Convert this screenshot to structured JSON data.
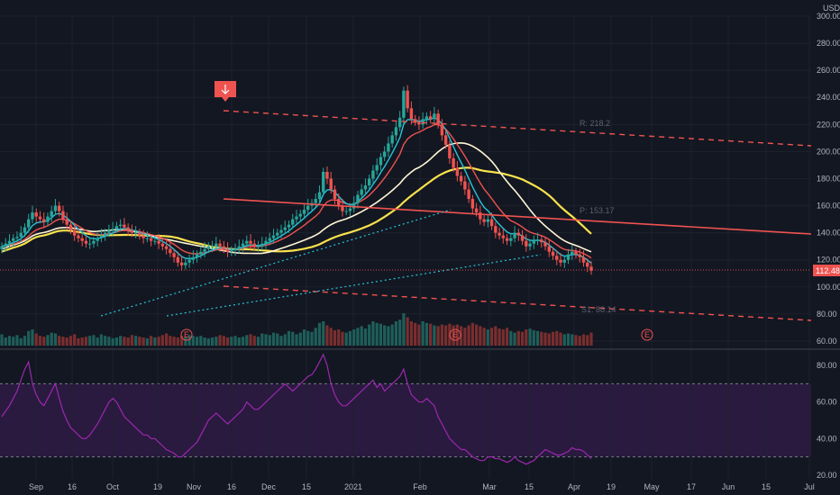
{
  "chart_data": {
    "type": "candlestick",
    "currency_label": "USD",
    "price_axis": {
      "ticks": [
        "300.00",
        "280.00",
        "260.00",
        "240.00",
        "220.00",
        "200.00",
        "180.00",
        "160.00",
        "140.00",
        "120.00",
        "100.00",
        "80.00",
        "60.00"
      ],
      "range": [
        58,
        300
      ]
    },
    "rsi_axis": {
      "ticks": [
        "80.00",
        "60.00",
        "40.00",
        "20.00"
      ],
      "range": [
        18,
        84
      ],
      "bands": [
        70,
        30
      ]
    },
    "x_axis": {
      "labels": [
        "Sep",
        "16",
        "Oct",
        "19",
        "Nov",
        "16",
        "Dec",
        "15",
        "2021",
        "Feb",
        "Mar",
        "15",
        "Apr",
        "19",
        "May",
        "17",
        "Jun",
        "15",
        "Jul"
      ]
    },
    "last_price": "112.48",
    "earnings_marker": "E",
    "annotations": {
      "resistance": "R: 218.2",
      "pivot": "P: 153.17",
      "support": "S1: 88.14"
    },
    "colors": {
      "up": "#26a69a",
      "down": "#ef5350",
      "ema_fast": "#26c6da",
      "ema_mid": "#ef5350",
      "sma_white": "#fff6d5",
      "sma_yellow": "#f9e24c",
      "rsi": "#9c27b0",
      "rsi_band_fill": "#2a1a3f",
      "grid": "#1e222d"
    },
    "series": {
      "close": [
        130,
        132,
        134,
        136,
        137,
        140,
        144,
        150,
        155,
        152,
        150,
        148,
        152,
        156,
        160,
        156,
        150,
        146,
        142,
        138,
        136,
        134,
        132,
        132,
        134,
        136,
        138,
        140,
        142,
        143,
        145,
        146,
        144,
        142,
        140,
        140,
        138,
        136,
        136,
        134,
        134,
        132,
        130,
        128,
        125,
        122,
        118,
        116,
        118,
        120,
        122,
        124,
        126,
        128,
        130,
        130,
        132,
        130,
        128,
        126,
        127,
        128,
        130,
        132,
        134,
        132,
        130,
        130,
        132,
        134,
        136,
        138,
        140,
        142,
        144,
        146,
        150,
        152,
        154,
        157,
        160,
        162,
        165,
        170,
        185,
        180,
        172,
        165,
        160,
        156,
        156,
        158,
        162,
        168,
        172,
        175,
        180,
        186,
        190,
        196,
        200,
        206,
        212,
        218,
        225,
        245,
        232,
        224,
        222,
        220,
        224,
        226,
        224,
        228,
        220,
        212,
        205,
        195,
        188,
        182,
        178,
        172,
        165,
        158,
        155,
        150,
        148,
        150,
        145,
        140,
        138,
        136,
        134,
        136,
        140,
        138,
        134,
        130,
        132,
        134,
        135,
        133,
        130,
        126,
        123,
        120,
        118,
        120,
        124,
        126,
        124,
        122,
        118,
        115,
        112
      ],
      "volume": [
        14,
        10,
        12,
        11,
        13,
        9,
        12,
        18,
        20,
        15,
        12,
        11,
        13,
        16,
        15,
        12,
        11,
        10,
        12,
        14,
        9,
        10,
        11,
        12,
        13,
        10,
        14,
        12,
        11,
        9,
        10,
        12,
        11,
        10,
        13,
        12,
        11,
        10,
        9,
        12,
        10,
        11,
        13,
        15,
        12,
        11,
        10,
        12,
        11,
        13,
        12,
        11,
        12,
        10,
        9,
        10,
        11,
        13,
        12,
        10,
        11,
        12,
        10,
        11,
        13,
        14,
        12,
        11,
        15,
        14,
        13,
        16,
        15,
        12,
        14,
        18,
        17,
        14,
        16,
        20,
        18,
        17,
        22,
        28,
        30,
        25,
        22,
        19,
        20,
        17,
        16,
        18,
        20,
        22,
        24,
        21,
        26,
        30,
        28,
        27,
        25,
        24,
        26,
        30,
        32,
        40,
        35,
        30,
        28,
        26,
        30,
        28,
        27,
        25,
        24,
        26,
        25,
        27,
        25,
        26,
        24,
        22,
        25,
        28,
        26,
        24,
        22,
        20,
        22,
        24,
        21,
        20,
        22,
        18,
        16,
        18,
        17,
        20,
        21,
        19,
        18,
        17,
        16,
        15,
        17,
        18,
        16,
        14,
        15,
        14,
        13,
        12,
        14,
        13,
        16
      ],
      "rsi": [
        52,
        55,
        58,
        62,
        66,
        72,
        78,
        82,
        70,
        64,
        60,
        58,
        62,
        66,
        70,
        62,
        55,
        50,
        46,
        44,
        42,
        40,
        40,
        42,
        45,
        48,
        52,
        56,
        60,
        62,
        60,
        56,
        52,
        50,
        48,
        46,
        44,
        42,
        42,
        40,
        40,
        38,
        36,
        34,
        33,
        32,
        30,
        30,
        32,
        34,
        36,
        38,
        42,
        46,
        50,
        52,
        54,
        52,
        50,
        48,
        50,
        52,
        54,
        56,
        60,
        58,
        56,
        56,
        58,
        60,
        62,
        64,
        66,
        68,
        70,
        68,
        66,
        68,
        70,
        72,
        74,
        75,
        78,
        82,
        86,
        80,
        70,
        64,
        60,
        58,
        58,
        60,
        62,
        64,
        66,
        68,
        70,
        72,
        68,
        70,
        66,
        68,
        70,
        72,
        74,
        78,
        70,
        64,
        62,
        60,
        60,
        62,
        60,
        58,
        52,
        48,
        44,
        40,
        38,
        36,
        34,
        34,
        32,
        30,
        29,
        28,
        28,
        30,
        30,
        29,
        29,
        28,
        27,
        28,
        30,
        28,
        27,
        26,
        27,
        28,
        30,
        32,
        34,
        33,
        32,
        31,
        31,
        32,
        33,
        35,
        34,
        34,
        33,
        31,
        29
      ]
    }
  }
}
